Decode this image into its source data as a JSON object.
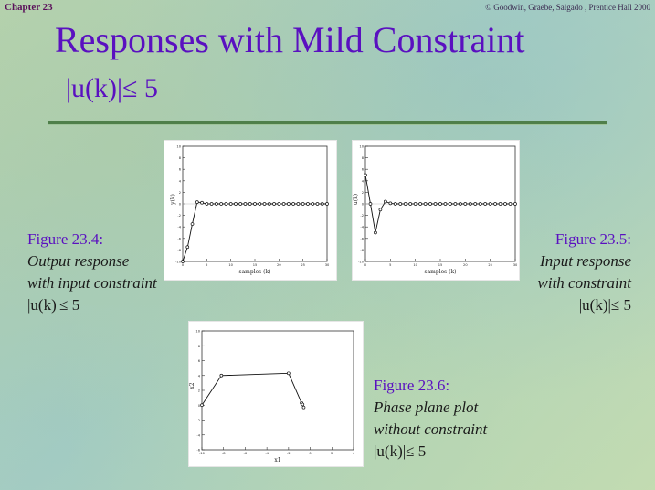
{
  "header": {
    "chapter": "Chapter 23",
    "copyright": "© Goodwin, Graebe, Salgado , Prentice Hall 2000"
  },
  "slide": {
    "title": "Responses with Mild Constraint",
    "subtitle": "|u(k)|≤ 5"
  },
  "figures": [
    {
      "heading": "Figure 23.4:",
      "lines": [
        "Output response",
        "with input constraint",
        "|u(k)|≤ 5"
      ]
    },
    {
      "heading": "Figure 23.5:",
      "lines": [
        "Input response",
        "with constraint",
        "|u(k)|≤ 5"
      ]
    },
    {
      "heading": "Figure 23.6:",
      "lines": [
        "Phase plane plot",
        "without constraint",
        "|u(k)|≤ 5"
      ]
    }
  ],
  "chart_data": [
    {
      "type": "line",
      "xlabel": "samples (k)",
      "ylabel": "y(k)",
      "xlim": [
        0,
        30
      ],
      "ylim": [
        -10,
        10
      ],
      "xticks": [
        "0",
        "5",
        "10",
        "15",
        "20",
        "25",
        "30"
      ],
      "yticks": [
        "-10",
        "-8",
        "-6",
        "-4",
        "-2",
        "0",
        "2",
        "4",
        "6",
        "8",
        "10"
      ],
      "x": [
        0,
        1,
        2,
        3,
        4,
        5,
        6,
        7,
        8,
        9,
        10,
        11,
        12,
        13,
        14,
        15,
        16,
        17,
        18,
        19,
        20,
        21,
        22,
        23,
        24,
        25,
        26,
        27,
        28,
        29,
        30
      ],
      "values": [
        -10,
        -7.5,
        -3.5,
        0.3,
        0.2,
        0,
        0,
        0,
        0,
        0,
        0,
        0,
        0,
        0,
        0,
        0,
        0,
        0,
        0,
        0,
        0,
        0,
        0,
        0,
        0,
        0,
        0,
        0,
        0,
        0,
        0
      ]
    },
    {
      "type": "line",
      "xlabel": "samples (k)",
      "ylabel": "u(k)",
      "xlim": [
        0,
        30
      ],
      "ylim": [
        -10,
        10
      ],
      "xticks": [
        "0",
        "5",
        "10",
        "15",
        "20",
        "25",
        "30"
      ],
      "yticks": [
        "-10",
        "-8",
        "-6",
        "-4",
        "-2",
        "0",
        "2",
        "4",
        "6",
        "8",
        "10"
      ],
      "x": [
        0,
        1,
        2,
        3,
        4,
        5,
        6,
        7,
        8,
        9,
        10,
        11,
        12,
        13,
        14,
        15,
        16,
        17,
        18,
        19,
        20,
        21,
        22,
        23,
        24,
        25,
        26,
        27,
        28,
        29,
        30
      ],
      "values": [
        5,
        0,
        -5,
        -1,
        0.4,
        0.1,
        0,
        0,
        0,
        0,
        0,
        0,
        0,
        0,
        0,
        0,
        0,
        0,
        0,
        0,
        0,
        0,
        0,
        0,
        0,
        0,
        0,
        0,
        0,
        0,
        0
      ]
    },
    {
      "type": "line",
      "xlabel": "x1",
      "ylabel": "x2",
      "xlim": [
        -10,
        4
      ],
      "ylim": [
        -6,
        10
      ],
      "xticks": [
        "-10",
        "-8",
        "-6",
        "-4",
        "-2",
        "0",
        "2",
        "4"
      ],
      "yticks": [
        "-6",
        "-4",
        "-2",
        "0",
        "2",
        "4",
        "6",
        "8",
        "10"
      ],
      "x": [
        -10,
        -8.2,
        -2,
        -0.8,
        -0.6,
        -0.7
      ],
      "values": [
        0,
        4,
        4.3,
        0.3,
        -0.3,
        0.1
      ]
    }
  ]
}
